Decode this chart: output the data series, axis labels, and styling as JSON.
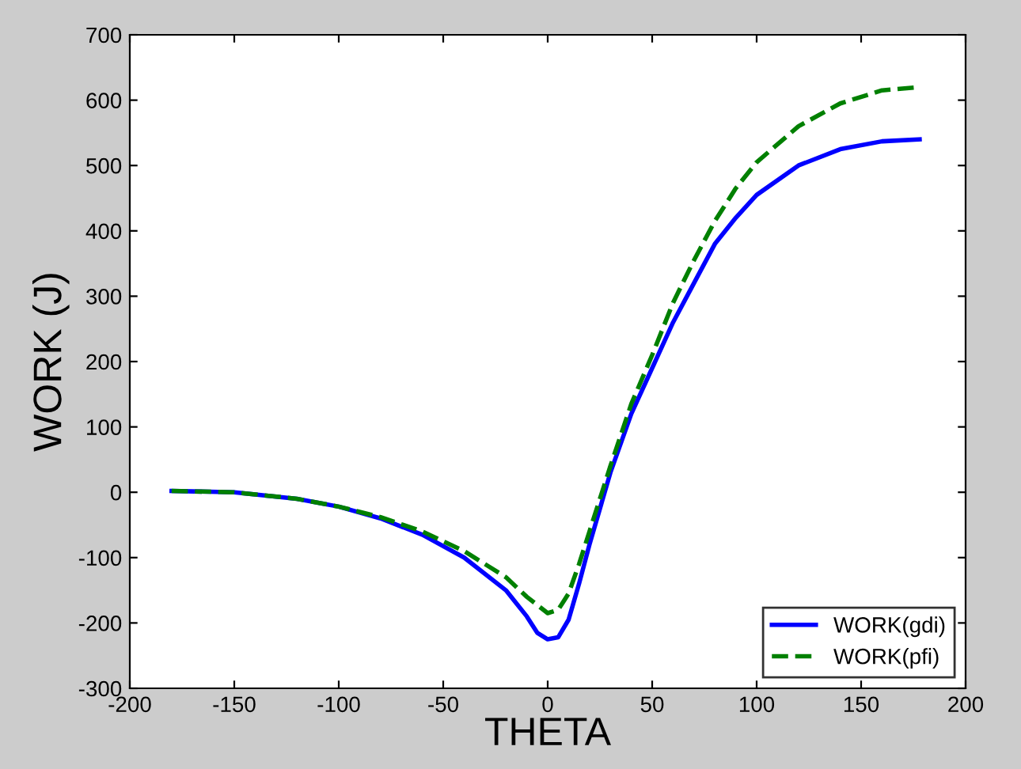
{
  "chart_data": {
    "type": "line",
    "xlabel": "THETA",
    "ylabel": "WORK (J)",
    "xlim": [
      -200,
      200
    ],
    "ylim": [
      -300,
      700
    ],
    "xticks": [
      -200,
      -150,
      -100,
      -50,
      0,
      50,
      100,
      150,
      200
    ],
    "yticks": [
      -300,
      -200,
      -100,
      0,
      100,
      200,
      300,
      400,
      500,
      600,
      700
    ],
    "grid": false,
    "legend": "bottom right",
    "series": [
      {
        "name": "WORK(gdi)",
        "color": "#0000ff",
        "line_style": "solid",
        "x": [
          -180,
          -150,
          -120,
          -100,
          -80,
          -60,
          -40,
          -20,
          -10,
          -5,
          0,
          5,
          10,
          15,
          20,
          25,
          30,
          40,
          50,
          60,
          70,
          80,
          90,
          100,
          120,
          140,
          160,
          178
        ],
        "values": [
          2,
          0,
          -10,
          -22,
          -40,
          -65,
          -100,
          -150,
          -190,
          -215,
          -225,
          -222,
          -195,
          -140,
          -80,
          -25,
          30,
          120,
          190,
          260,
          320,
          380,
          420,
          455,
          500,
          525,
          537,
          540
        ]
      },
      {
        "name": "WORK(pfi)",
        "color": "#008000",
        "line_style": "dashed",
        "x": [
          -180,
          -150,
          -120,
          -100,
          -80,
          -60,
          -40,
          -20,
          -10,
          0,
          5,
          10,
          15,
          20,
          25,
          30,
          40,
          50,
          60,
          70,
          80,
          90,
          100,
          120,
          140,
          160,
          178
        ],
        "values": [
          2,
          0,
          -10,
          -22,
          -38,
          -60,
          -90,
          -130,
          -160,
          -185,
          -180,
          -155,
          -110,
          -60,
          -10,
          40,
          135,
          210,
          290,
          355,
          415,
          465,
          505,
          560,
          595,
          615,
          620
        ]
      }
    ]
  }
}
